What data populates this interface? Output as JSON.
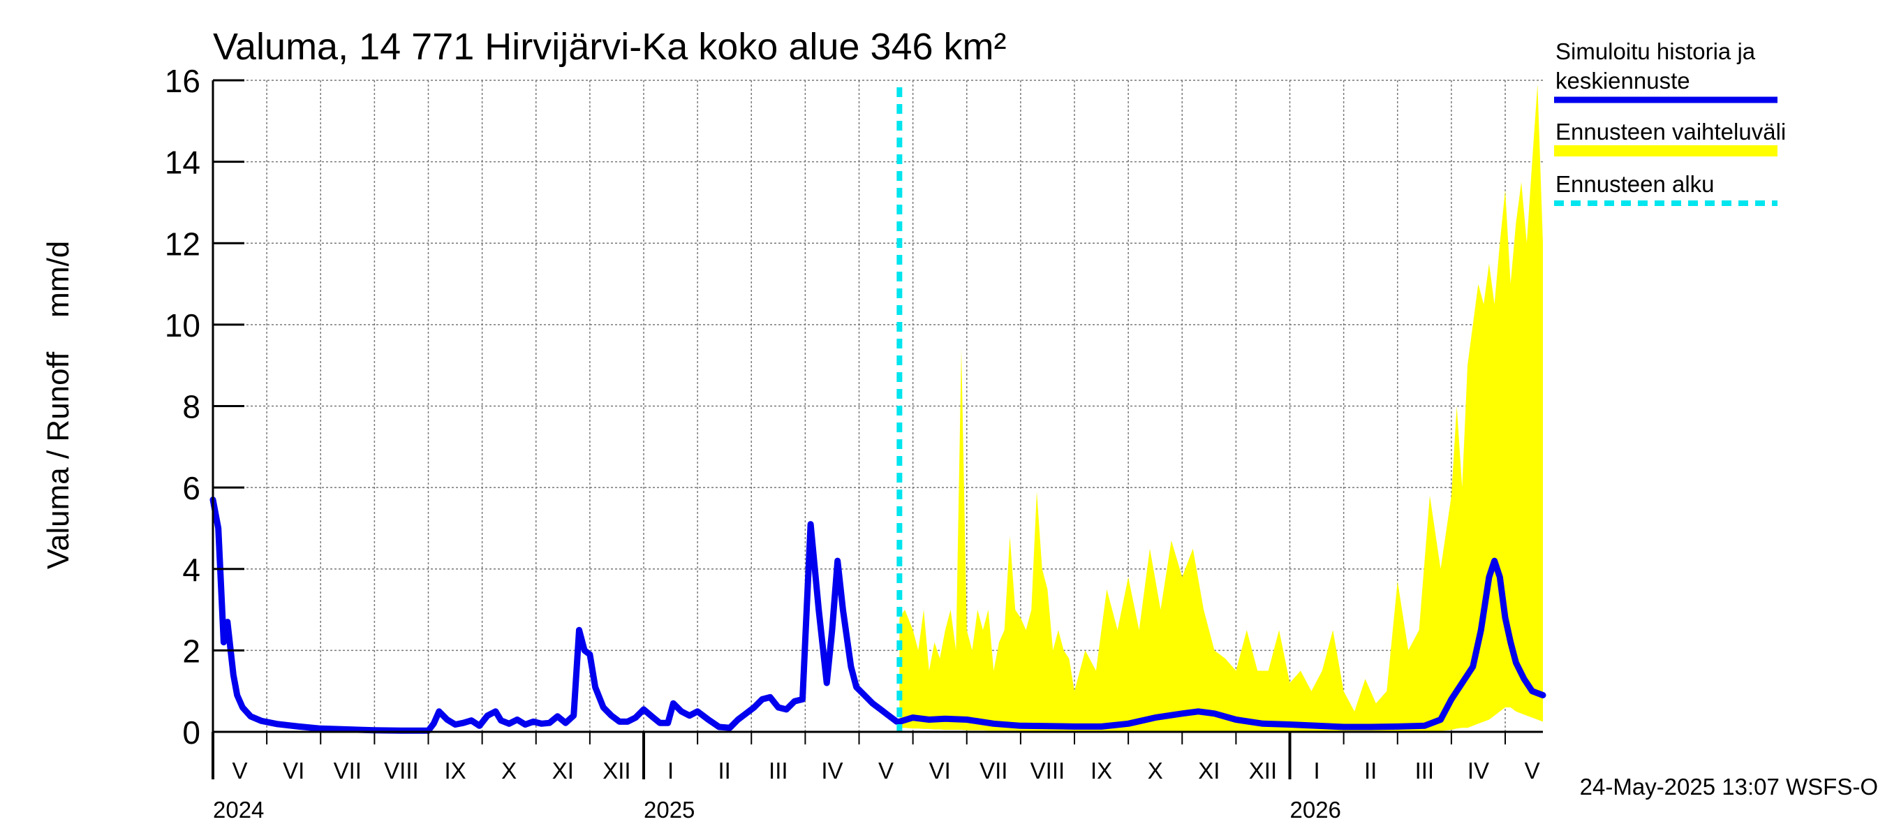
{
  "chart_data": {
    "type": "line",
    "title": "Valuma, 14 771 Hirvijärvi-Ka koko alue 346 km²",
    "ylabel": "Valuma / Runoff    mm/d",
    "xlabel": "",
    "ylim": [
      0,
      16
    ],
    "yticks": [
      0,
      2,
      4,
      6,
      8,
      10,
      12,
      14,
      16
    ],
    "x_unit": "months since 1 May 2024",
    "xlim": [
      0,
      24.7
    ],
    "grid": true,
    "months": [
      {
        "label": "V",
        "x": 0
      },
      {
        "label": "VI",
        "x": 1
      },
      {
        "label": "VII",
        "x": 2
      },
      {
        "label": "VIII",
        "x": 3
      },
      {
        "label": "IX",
        "x": 4
      },
      {
        "label": "X",
        "x": 5
      },
      {
        "label": "XI",
        "x": 6
      },
      {
        "label": "XII",
        "x": 7
      },
      {
        "label": "I",
        "x": 8
      },
      {
        "label": "II",
        "x": 9
      },
      {
        "label": "III",
        "x": 10
      },
      {
        "label": "IV",
        "x": 11
      },
      {
        "label": "V",
        "x": 12
      },
      {
        "label": "VI",
        "x": 13
      },
      {
        "label": "VII",
        "x": 14
      },
      {
        "label": "VIII",
        "x": 15
      },
      {
        "label": "IX",
        "x": 16
      },
      {
        "label": "X",
        "x": 17
      },
      {
        "label": "XI",
        "x": 18
      },
      {
        "label": "XII",
        "x": 19
      },
      {
        "label": "I",
        "x": 20
      },
      {
        "label": "II",
        "x": 21
      },
      {
        "label": "III",
        "x": 22
      },
      {
        "label": "IV",
        "x": 23
      },
      {
        "label": "V",
        "x": 24
      }
    ],
    "years": [
      {
        "label": "2024",
        "x": 0
      },
      {
        "label": "2025",
        "x": 8
      },
      {
        "label": "2026",
        "x": 20
      }
    ],
    "forecast_start_x": 12.75,
    "legend": [
      {
        "label": "Simuloitu historia ja keskiennuste",
        "color": "#0000ee",
        "style": "solid"
      },
      {
        "label": "Ennusteen vaihteluväli",
        "color": "#ffff00",
        "style": "band"
      },
      {
        "label": "Ennusteen alku",
        "color": "#00e5ee",
        "style": "dashed"
      }
    ],
    "series": [
      {
        "name": "Simuloitu historia ja keskiennuste",
        "color": "#0000ee",
        "x": [
          0,
          0.1,
          0.2,
          0.27,
          0.32,
          0.38,
          0.45,
          0.55,
          0.7,
          0.9,
          1.2,
          1.6,
          2.0,
          2.5,
          3.0,
          3.5,
          4.0,
          4.1,
          4.2,
          4.35,
          4.5,
          4.65,
          4.8,
          4.95,
          5.1,
          5.25,
          5.35,
          5.5,
          5.65,
          5.8,
          5.95,
          6.1,
          6.25,
          6.4,
          6.55,
          6.7,
          6.8,
          6.9,
          7.0,
          7.1,
          7.25,
          7.4,
          7.55,
          7.7,
          7.85,
          8.0,
          8.15,
          8.3,
          8.45,
          8.55,
          8.7,
          8.85,
          9.0,
          9.2,
          9.4,
          9.6,
          9.75,
          9.9,
          10.05,
          10.2,
          10.35,
          10.5,
          10.65,
          10.8,
          10.95,
          11.1,
          11.25,
          11.4,
          11.5,
          11.6,
          11.7,
          11.85,
          11.95,
          12.1,
          12.25,
          12.4,
          12.55,
          12.7,
          12.75,
          13.0,
          13.3,
          13.6,
          14.0,
          14.5,
          15.0,
          15.5,
          16.0,
          16.5,
          17.0,
          17.5,
          18.0,
          18.3,
          18.6,
          19.0,
          19.5,
          20.0,
          20.5,
          21.0,
          21.5,
          22.0,
          22.5,
          22.8,
          23.0,
          23.2,
          23.4,
          23.55,
          23.7,
          23.8,
          23.9,
          24.0,
          24.1,
          24.2,
          24.35,
          24.5,
          24.7
        ],
        "values": [
          5.7,
          5.0,
          2.2,
          2.7,
          2.1,
          1.4,
          0.9,
          0.6,
          0.38,
          0.27,
          0.19,
          0.13,
          0.08,
          0.06,
          0.04,
          0.03,
          0.03,
          0.2,
          0.5,
          0.3,
          0.18,
          0.22,
          0.28,
          0.15,
          0.4,
          0.5,
          0.28,
          0.2,
          0.3,
          0.18,
          0.25,
          0.2,
          0.22,
          0.38,
          0.22,
          0.4,
          2.5,
          2.0,
          1.9,
          1.1,
          0.6,
          0.4,
          0.25,
          0.25,
          0.35,
          0.55,
          0.38,
          0.22,
          0.22,
          0.7,
          0.5,
          0.4,
          0.5,
          0.3,
          0.12,
          0.1,
          0.3,
          0.45,
          0.6,
          0.8,
          0.85,
          0.6,
          0.55,
          0.75,
          0.8,
          5.1,
          3.0,
          1.2,
          2.5,
          4.2,
          3.0,
          1.6,
          1.1,
          0.9,
          0.7,
          0.55,
          0.4,
          0.25,
          0.25,
          0.35,
          0.3,
          0.32,
          0.3,
          0.2,
          0.15,
          0.14,
          0.13,
          0.13,
          0.2,
          0.35,
          0.45,
          0.5,
          0.45,
          0.3,
          0.2,
          0.18,
          0.15,
          0.12,
          0.12,
          0.13,
          0.15,
          0.3,
          0.8,
          1.2,
          1.6,
          2.5,
          3.8,
          4.2,
          3.8,
          2.8,
          2.2,
          1.7,
          1.3,
          1.0,
          0.9
        ]
      }
    ],
    "band": {
      "name": "Ennusteen vaihteluväli",
      "color": "#ffff00",
      "x": [
        12.75,
        12.85,
        13.0,
        13.1,
        13.2,
        13.3,
        13.4,
        13.5,
        13.6,
        13.7,
        13.8,
        13.9,
        14.0,
        14.1,
        14.2,
        14.3,
        14.4,
        14.5,
        14.6,
        14.7,
        14.8,
        14.9,
        15.0,
        15.1,
        15.2,
        15.3,
        15.4,
        15.5,
        15.6,
        15.7,
        15.8,
        15.9,
        16.0,
        16.2,
        16.4,
        16.6,
        16.8,
        17.0,
        17.2,
        17.4,
        17.6,
        17.8,
        18.0,
        18.2,
        18.4,
        18.6,
        18.8,
        19.0,
        19.2,
        19.4,
        19.6,
        19.8,
        20.0,
        20.2,
        20.4,
        20.6,
        20.8,
        21.0,
        21.2,
        21.4,
        21.6,
        21.8,
        22.0,
        22.2,
        22.4,
        22.6,
        22.8,
        23.0,
        23.1,
        23.2,
        23.3,
        23.4,
        23.5,
        23.6,
        23.7,
        23.8,
        23.9,
        24.0,
        24.1,
        24.2,
        24.3,
        24.4,
        24.5,
        24.6,
        24.7
      ],
      "upper": [
        2.8,
        3.0,
        2.5,
        2.0,
        3.0,
        1.5,
        2.2,
        1.8,
        2.5,
        3.0,
        2.0,
        9.4,
        2.5,
        2.0,
        3.0,
        2.5,
        3.0,
        1.5,
        2.2,
        2.5,
        4.8,
        3.0,
        2.8,
        2.5,
        3.0,
        5.9,
        4.0,
        3.5,
        2.0,
        2.5,
        2.0,
        1.8,
        1.0,
        2.0,
        1.5,
        3.5,
        2.5,
        3.8,
        2.5,
        4.5,
        3.0,
        4.7,
        3.8,
        4.5,
        3.0,
        2.0,
        1.8,
        1.5,
        2.5,
        1.5,
        1.5,
        2.5,
        1.2,
        1.5,
        1.0,
        1.5,
        2.5,
        1.0,
        0.5,
        1.3,
        0.7,
        1.0,
        3.7,
        2.0,
        2.5,
        5.8,
        4.0,
        5.8,
        8.0,
        6.0,
        9.0,
        10.0,
        11.0,
        10.5,
        11.5,
        10.5,
        12.0,
        13.3,
        11.0,
        12.5,
        13.5,
        12.0,
        14.0,
        15.9,
        12.0
      ],
      "lower": [
        0.1,
        0.1,
        0.08,
        0.08,
        0.07,
        0.07,
        0.06,
        0.06,
        0.05,
        0.05,
        0.05,
        0.05,
        0.04,
        0.04,
        0.04,
        0.04,
        0.03,
        0.03,
        0.03,
        0.03,
        0.03,
        0.03,
        0.02,
        0.02,
        0.02,
        0.02,
        0.02,
        0.02,
        0.02,
        0.02,
        0.02,
        0.02,
        0.02,
        0.02,
        0.02,
        0.02,
        0.02,
        0.02,
        0.02,
        0.02,
        0.02,
        0.02,
        0.02,
        0.02,
        0.02,
        0.02,
        0.02,
        0.02,
        0.02,
        0.02,
        0.02,
        0.02,
        0.02,
        0.02,
        0.02,
        0.02,
        0.02,
        0.02,
        0.02,
        0.02,
        0.02,
        0.02,
        0.02,
        0.02,
        0.02,
        0.02,
        0.02,
        0.05,
        0.08,
        0.1,
        0.1,
        0.15,
        0.2,
        0.25,
        0.3,
        0.4,
        0.5,
        0.6,
        0.6,
        0.5,
        0.45,
        0.4,
        0.35,
        0.3,
        0.25
      ]
    }
  },
  "footer": {
    "timestamp": "24-May-2025 13:07 WSFS-O"
  }
}
